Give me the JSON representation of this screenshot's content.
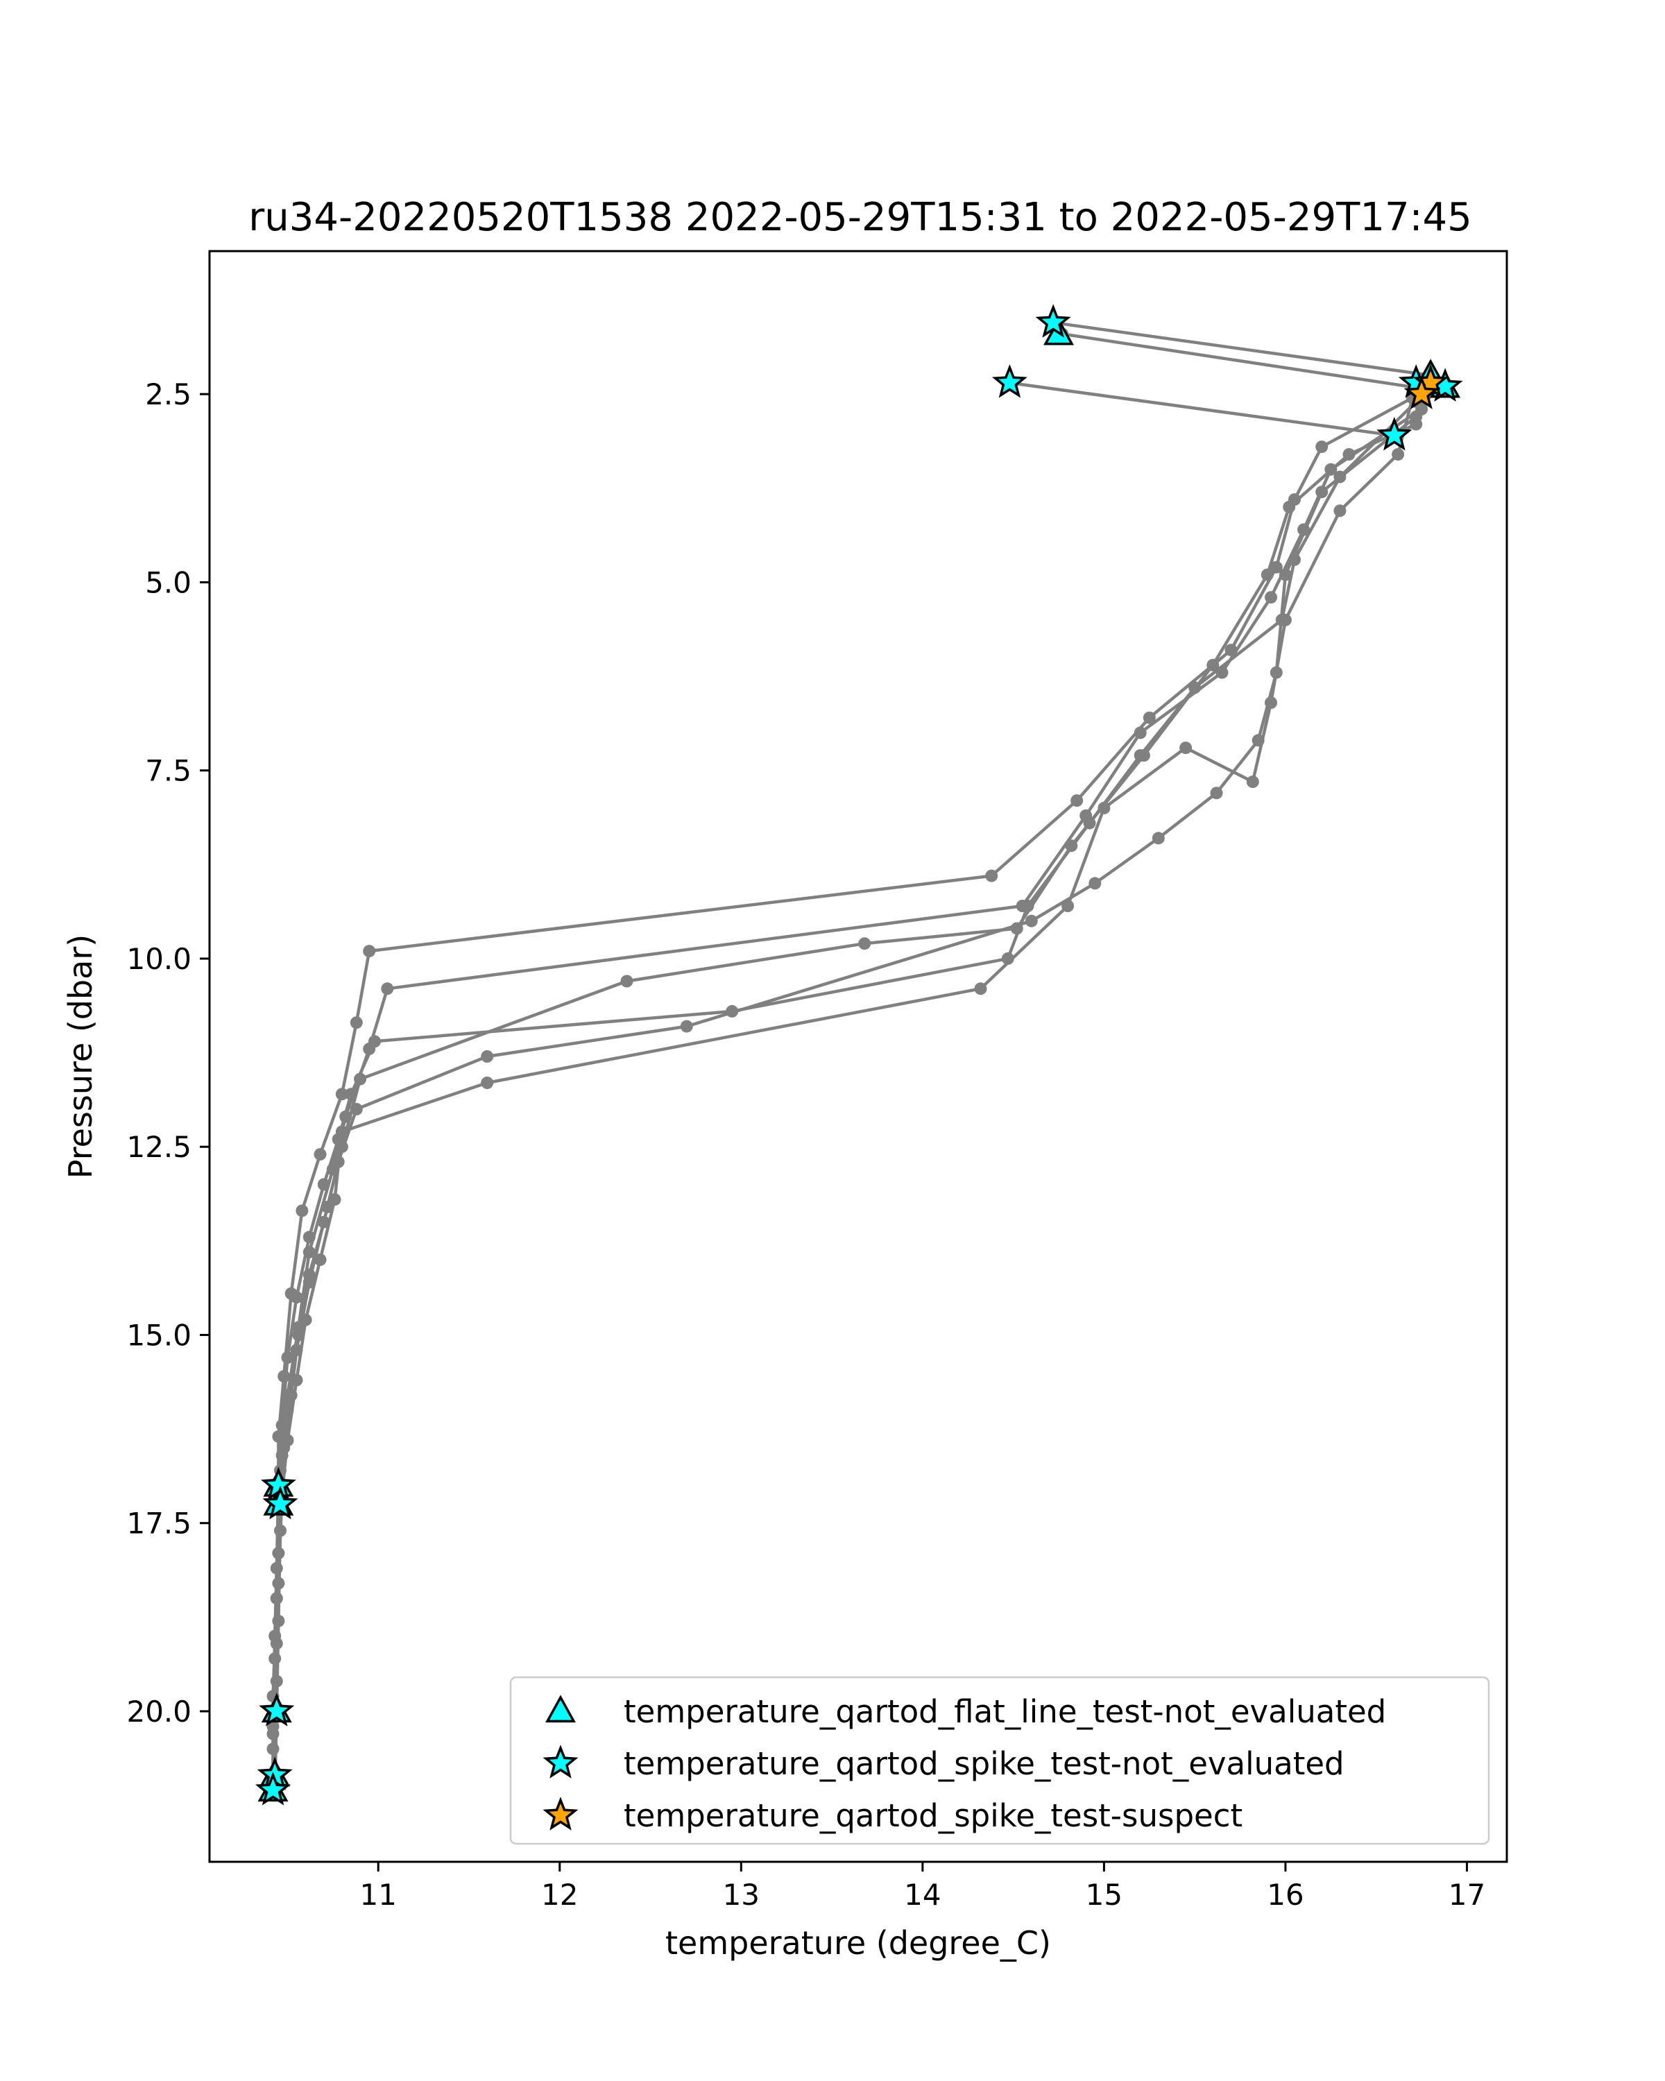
{
  "chart_data": {
    "type": "line",
    "title": "ru34-20220520T1538 2022-05-29T15:31 to 2022-05-29T17:45",
    "xlabel": "temperature (degree_C)",
    "ylabel": "Pressure (dbar)",
    "xlim": [
      10.07,
      17.22
    ],
    "ylim": [
      22.0,
      0.6
    ],
    "y_inverted": true,
    "xticks": [
      11,
      12,
      13,
      14,
      15,
      16,
      17
    ],
    "xtick_labels": [
      "11",
      "12",
      "13",
      "14",
      "15",
      "16",
      "17"
    ],
    "yticks": [
      2.5,
      5.0,
      7.5,
      10.0,
      12.5,
      15.0,
      17.5,
      20.0
    ],
    "ytick_labels": [
      "2.5",
      "5.0",
      "7.5",
      "10.0",
      "12.5",
      "15.0",
      "17.5",
      "20.0"
    ],
    "grid": false,
    "line_color": "#808080",
    "profiles": [
      {
        "temperature": [
          14.72,
          16.8,
          16.7,
          16.2,
          16.05,
          15.95,
          15.7,
          15.25,
          14.85,
          14.38,
          10.95,
          10.88,
          10.8,
          10.68,
          10.58,
          10.52,
          10.48,
          10.45,
          10.45,
          10.44,
          10.43,
          10.42
        ],
        "pressure": [
          1.55,
          2.25,
          2.55,
          3.2,
          3.9,
          4.8,
          5.9,
          6.8,
          7.9,
          8.9,
          9.9,
          10.85,
          11.8,
          12.6,
          13.35,
          14.45,
          15.55,
          16.35,
          17.0,
          18.1,
          19.0,
          20.2
        ]
      },
      {
        "temperature": [
          14.77,
          16.82,
          16.75,
          16.25,
          16.1,
          15.92,
          15.65,
          15.2,
          14.9,
          14.55,
          11.05,
          10.95,
          10.82,
          10.75,
          10.62,
          10.56,
          10.5,
          10.47,
          10.46,
          10.44,
          10.43,
          10.42,
          10.42
        ],
        "pressure": [
          1.7,
          2.45,
          2.7,
          3.5,
          4.3,
          5.2,
          6.2,
          7.0,
          8.1,
          9.3,
          10.4,
          11.2,
          12.1,
          12.8,
          13.9,
          14.9,
          15.8,
          16.6,
          17.3,
          18.5,
          19.3,
          20.5,
          21.0
        ]
      },
      {
        "temperature": [
          14.48,
          16.6,
          16.72,
          16.35,
          16.02,
          15.9,
          15.6,
          15.22,
          14.82,
          14.52,
          13.68,
          12.37,
          10.9,
          10.8,
          10.72,
          10.62,
          10.55,
          10.5,
          10.46,
          10.45,
          10.44,
          10.42
        ],
        "pressure": [
          2.35,
          3.05,
          2.9,
          3.3,
          4.0,
          4.9,
          6.1,
          7.3,
          8.5,
          9.6,
          9.8,
          10.3,
          11.6,
          12.5,
          13.3,
          14.3,
          15.2,
          16.0,
          16.8,
          17.9,
          19.1,
          20.3
        ]
      },
      {
        "temperature": [
          16.88,
          16.72,
          16.3,
          16.05,
          15.98,
          15.5,
          15.2,
          14.92,
          14.58,
          14.47,
          12.95,
          10.98,
          10.85,
          10.78,
          10.7,
          10.62,
          10.55,
          10.5,
          10.47,
          10.45,
          10.44,
          10.42,
          10.42
        ],
        "pressure": [
          2.4,
          2.6,
          3.6,
          4.7,
          5.5,
          6.4,
          7.3,
          8.2,
          9.3,
          10.0,
          10.7,
          11.1,
          11.8,
          12.4,
          13.0,
          13.7,
          14.5,
          15.3,
          16.2,
          17.2,
          18.5,
          19.8,
          20.9
        ]
      },
      {
        "temperature": [
          16.8,
          16.72,
          16.2,
          16.0,
          15.95,
          15.85,
          15.62,
          15.3,
          14.95,
          14.6,
          12.7,
          11.6,
          10.88,
          10.78,
          10.7,
          10.62,
          10.56,
          10.52,
          10.48,
          10.46,
          10.45,
          10.44,
          10.43
        ],
        "pressure": [
          2.35,
          2.8,
          3.8,
          4.9,
          6.2,
          7.1,
          7.8,
          8.4,
          9.0,
          9.5,
          10.9,
          11.3,
          12.0,
          12.7,
          13.5,
          14.2,
          15.0,
          15.8,
          16.5,
          17.6,
          18.8,
          20.0,
          21.05
        ]
      },
      {
        "temperature": [
          16.75,
          16.7,
          16.62,
          16.3,
          16.0,
          15.92,
          15.82,
          15.45,
          15.0,
          14.8,
          14.32,
          11.6,
          10.8,
          10.76,
          10.68,
          10.6,
          10.55,
          10.5,
          10.47,
          10.45,
          10.44,
          10.43
        ],
        "pressure": [
          2.5,
          2.55,
          3.3,
          4.05,
          5.5,
          6.6,
          7.65,
          7.2,
          8.0,
          9.3,
          10.4,
          11.65,
          12.3,
          13.2,
          14.0,
          14.8,
          15.6,
          16.4,
          17.1,
          18.3,
          19.6,
          20.8
        ]
      }
    ],
    "markers": [
      {
        "series": "temperature_qartod_flat_line_test-not_evaluated",
        "x": [
          14.75,
          16.8,
          16.88,
          10.45,
          10.45,
          10.44,
          10.43,
          10.42
        ],
        "y": [
          1.7,
          2.25,
          2.4,
          17.0,
          17.25,
          20.0,
          20.85,
          21.05
        ]
      },
      {
        "series": "temperature_qartod_spike_test-not_evaluated",
        "x": [
          14.72,
          14.48,
          16.72,
          16.88,
          16.6,
          10.45,
          10.46,
          10.44,
          10.43,
          10.42
        ],
        "y": [
          1.55,
          2.35,
          2.35,
          2.4,
          3.05,
          17.0,
          17.25,
          20.0,
          20.85,
          21.05
        ]
      },
      {
        "series": "temperature_qartod_spike_test-suspect",
        "x": [
          16.8,
          16.75
        ],
        "y": [
          2.35,
          2.5
        ]
      }
    ],
    "legend": {
      "placement": "lower-right",
      "entries": [
        {
          "label": "temperature_qartod_flat_line_test-not_evaluated",
          "marker": "triangle",
          "color": "#00ffff"
        },
        {
          "label": "temperature_qartod_spike_test-not_evaluated",
          "marker": "star",
          "color": "#00ffff"
        },
        {
          "label": "temperature_qartod_spike_test-suspect",
          "marker": "star",
          "color": "#ffa500"
        }
      ]
    }
  }
}
